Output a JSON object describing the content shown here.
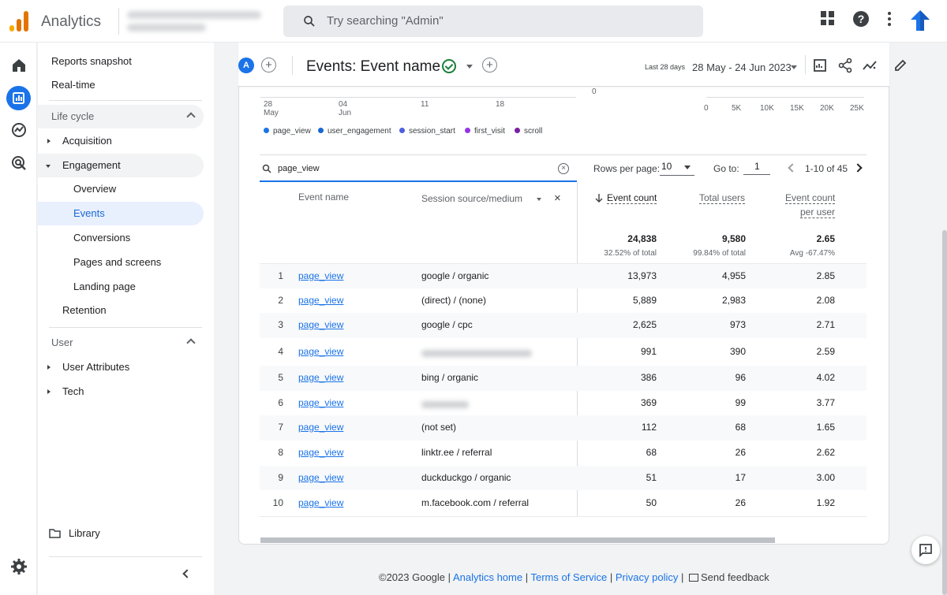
{
  "app": {
    "name": "Analytics",
    "search_placeholder": "Try searching \"Admin\""
  },
  "colors": {
    "accent": "#1a73e8",
    "logo": [
      "#f9ab00",
      "#e37400",
      "#e37400"
    ]
  },
  "icons": [
    "apps-icon",
    "help-icon",
    "more-vert-icon",
    "upgrade-arrow-icon",
    "home-icon",
    "reports-icon",
    "explore-icon",
    "advertising-icon",
    "settings-icon"
  ],
  "nav": {
    "reports_snapshot": "Reports snapshot",
    "realtime": "Real-time",
    "lifecycle": "Life cycle",
    "acquisition": "Acquisition",
    "engagement": "Engagement",
    "overview": "Overview",
    "events": "Events",
    "conversions": "Conversions",
    "pages_and_screens": "Pages and screens",
    "landing_page": "Landing page",
    "retention": "Retention",
    "user": "User",
    "user_attributes": "User Attributes",
    "tech": "Tech",
    "library": "Library"
  },
  "header": {
    "avatar": "A",
    "title": "Events: Event name",
    "last_label": "Last 28 days",
    "date_range": "28 May - 24 Jun 2023"
  },
  "chart_data": {
    "type": "line",
    "x_ticks": [
      {
        "day": "28",
        "month": "May"
      },
      {
        "day": "04",
        "month": "Jun"
      },
      {
        "day": "11",
        "month": ""
      },
      {
        "day": "18",
        "month": ""
      }
    ],
    "y_zero": "0",
    "bar_ticks": [
      "0",
      "5K",
      "10K",
      "15K",
      "20K",
      "25K"
    ],
    "legend": [
      {
        "name": "page_view",
        "color": "#1a73e8"
      },
      {
        "name": "user_engagement",
        "color": "#1967d2"
      },
      {
        "name": "session_start",
        "color": "#4d5fe0"
      },
      {
        "name": "first_visit",
        "color": "#9334e6"
      },
      {
        "name": "scroll",
        "color": "#7b1fa2"
      }
    ]
  },
  "table": {
    "search_value": "page_view",
    "rows_per_page_label": "Rows per page:",
    "rows_per_page": "10",
    "goto_label": "Go to:",
    "goto_value": "1",
    "page_info": "1-10 of 45",
    "headers": {
      "event_name": "Event name",
      "session_source": "Session source/medium",
      "event_count": "Event count",
      "total_users": "Total users",
      "ecpu_1": "Event count",
      "ecpu_2": "per user"
    },
    "totals": {
      "event_count": "24,838",
      "event_count_sub": "32.52% of total",
      "total_users": "9,580",
      "total_users_sub": "99.84% of total",
      "ecpu": "2.65",
      "ecpu_sub": "Avg -67.47%"
    },
    "rows": [
      {
        "idx": "1",
        "event": "page_view",
        "source": "google / organic",
        "count": "13,973",
        "users": "4,955",
        "per_user": "2.85"
      },
      {
        "idx": "2",
        "event": "page_view",
        "source": "(direct) / (none)",
        "count": "5,889",
        "users": "2,983",
        "per_user": "2.08"
      },
      {
        "idx": "3",
        "event": "page_view",
        "source": "google / cpc",
        "count": "2,625",
        "users": "973",
        "per_user": "2.71"
      },
      {
        "idx": "4",
        "event": "page_view",
        "source": "",
        "count": "991",
        "users": "390",
        "per_user": "2.59"
      },
      {
        "idx": "5",
        "event": "page_view",
        "source": "bing / organic",
        "count": "386",
        "users": "96",
        "per_user": "4.02"
      },
      {
        "idx": "6",
        "event": "page_view",
        "source": "",
        "count": "369",
        "users": "99",
        "per_user": "3.77"
      },
      {
        "idx": "7",
        "event": "page_view",
        "source": "(not set)",
        "count": "112",
        "users": "68",
        "per_user": "1.65"
      },
      {
        "idx": "8",
        "event": "page_view",
        "source": "linktr.ee / referral",
        "count": "68",
        "users": "26",
        "per_user": "2.62"
      },
      {
        "idx": "9",
        "event": "page_view",
        "source": "duckduckgo / organic",
        "count": "51",
        "users": "17",
        "per_user": "3.00"
      },
      {
        "idx": "10",
        "event": "page_view",
        "source": "m.facebook.com / referral",
        "count": "50",
        "users": "26",
        "per_user": "1.92"
      }
    ]
  },
  "footer": {
    "copyright": "©2023 Google |",
    "analytics_home": "Analytics home",
    "terms": "Terms of Service",
    "privacy": "Privacy policy",
    "feedback": "Send feedback"
  }
}
